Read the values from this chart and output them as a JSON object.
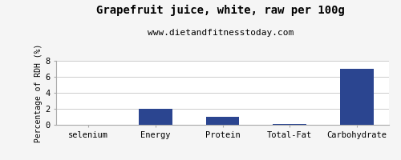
{
  "title": "Grapefruit juice, white, raw per 100g",
  "subtitle": "www.dietandfitnesstoday.com",
  "categories": [
    "selenium",
    "Energy",
    "Protein",
    "Total-Fat",
    "Carbohydrate"
  ],
  "values": [
    0.0,
    2.0,
    1.0,
    0.1,
    7.0
  ],
  "bar_color": "#2b4590",
  "ylabel": "Percentage of RDH (%)",
  "ylim": [
    0,
    8
  ],
  "yticks": [
    0,
    2,
    4,
    6,
    8
  ],
  "background_color": "#f5f5f5",
  "plot_bg_color": "#ffffff",
  "title_fontsize": 10,
  "subtitle_fontsize": 8,
  "label_fontsize": 7,
  "tick_fontsize": 7.5
}
